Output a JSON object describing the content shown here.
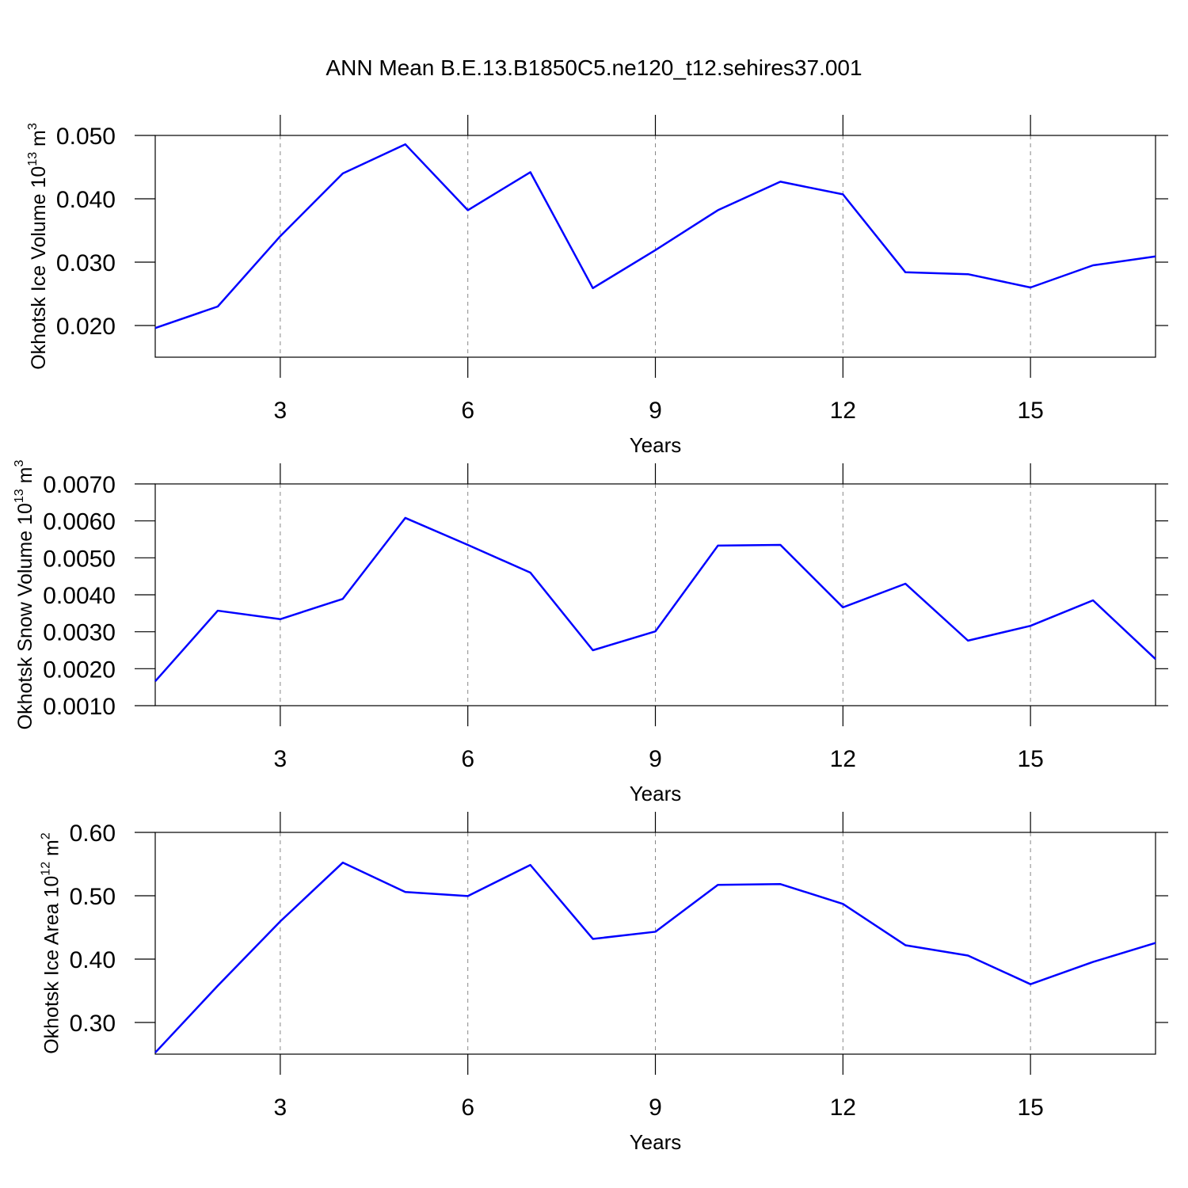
{
  "title": "ANN Mean B.E.13.B1850C5.ne120_t12.sehires37.001",
  "chart_data": [
    {
      "type": "line",
      "xlabel": "Years",
      "ylabel": [
        "Okhotsk Ice Volume 10",
        "13",
        " m",
        "3"
      ],
      "x": [
        1,
        2,
        3,
        4,
        5,
        6,
        7,
        8,
        9,
        10,
        11,
        12,
        13,
        14,
        15,
        16,
        17
      ],
      "xlim": [
        1,
        17
      ],
      "xticks": [
        3,
        6,
        9,
        12,
        15
      ],
      "ylim": [
        0.015,
        0.05
      ],
      "yticks": [
        {
          "value": 0.02,
          "label": "0.020"
        },
        {
          "value": 0.03,
          "label": "0.030"
        },
        {
          "value": 0.04,
          "label": "0.040"
        },
        {
          "value": 0.05,
          "label": "0.050"
        }
      ],
      "grid": true,
      "series": [
        {
          "color": "#0000ff",
          "values": [
            0.0196,
            0.023,
            0.0341,
            0.044,
            0.0486,
            0.0382,
            0.0442,
            0.0259,
            0.0319,
            0.0382,
            0.0427,
            0.0407,
            0.0284,
            0.0281,
            0.026,
            0.0295,
            0.0309
          ]
        }
      ]
    },
    {
      "type": "line",
      "xlabel": "Years",
      "ylabel": [
        "Okhotsk Snow Volume 10",
        "13",
        " m",
        "3"
      ],
      "x": [
        1,
        2,
        3,
        4,
        5,
        6,
        7,
        8,
        9,
        10,
        11,
        12,
        13,
        14,
        15,
        16,
        17
      ],
      "xlim": [
        1,
        17
      ],
      "xticks": [
        3,
        6,
        9,
        12,
        15
      ],
      "ylim": [
        0.001,
        0.007
      ],
      "yticks": [
        {
          "value": 0.001,
          "label": "0.0010"
        },
        {
          "value": 0.002,
          "label": "0.0020"
        },
        {
          "value": 0.003,
          "label": "0.0030"
        },
        {
          "value": 0.004,
          "label": "0.0040"
        },
        {
          "value": 0.005,
          "label": "0.0050"
        },
        {
          "value": 0.006,
          "label": "0.0060"
        },
        {
          "value": 0.007,
          "label": "0.0070"
        }
      ],
      "grid": true,
      "series": [
        {
          "color": "#0000ff",
          "values": [
            0.00166,
            0.00357,
            0.00334,
            0.00389,
            0.00608,
            0.00535,
            0.0046,
            0.0025,
            0.00301,
            0.00533,
            0.00535,
            0.00366,
            0.0043,
            0.00276,
            0.00316,
            0.00385,
            0.00226
          ]
        }
      ]
    },
    {
      "type": "line",
      "xlabel": "Years",
      "ylabel": [
        "Okhotsk Ice Area 10",
        "12",
        " m",
        "2"
      ],
      "x": [
        1,
        2,
        3,
        4,
        5,
        6,
        7,
        8,
        9,
        10,
        11,
        12,
        13,
        14,
        15,
        16,
        17
      ],
      "xlim": [
        1,
        17
      ],
      "xticks": [
        3,
        6,
        9,
        12,
        15
      ],
      "ylim": [
        0.25,
        0.6
      ],
      "yticks": [
        {
          "value": 0.3,
          "label": "0.30"
        },
        {
          "value": 0.4,
          "label": "0.40"
        },
        {
          "value": 0.5,
          "label": "0.50"
        },
        {
          "value": 0.6,
          "label": "0.60"
        }
      ],
      "grid": true,
      "series": [
        {
          "color": "#0000ff",
          "values": [
            0.2524,
            0.358,
            0.4595,
            0.5523,
            0.5059,
            0.4996,
            0.5486,
            0.4319,
            0.4432,
            0.5172,
            0.5184,
            0.4871,
            0.4219,
            0.4056,
            0.3604,
            0.3955,
            0.4256
          ]
        }
      ]
    }
  ]
}
